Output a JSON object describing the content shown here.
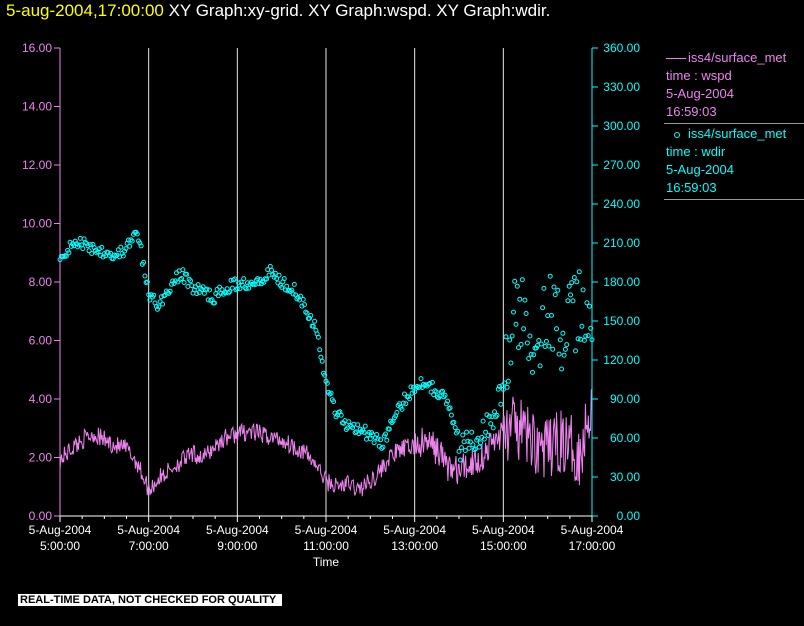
{
  "header": {
    "datetime": "5-aug-2004,17:00:00",
    "graphs": "XY Graph:xy-grid.  XY Graph:wspd.  XY Graph:wdir."
  },
  "legend": {
    "wspd": {
      "line1": "iss4/surface_met",
      "line2": "time : wspd",
      "line3": "5-Aug-2004",
      "line4": "16:59:03"
    },
    "wdir": {
      "line1": "iss4/surface_met",
      "line2": "time : wdir",
      "line3": "5-Aug-2004",
      "line4": "16:59:03"
    }
  },
  "footer": {
    "text": "REAL-TIME DATA, NOT CHECKED FOR QUALITY"
  },
  "colors": {
    "wspd": "#ee82ee",
    "wdir": "#00ffff",
    "grid": "#e8e8e8",
    "axis": "#ffffff"
  },
  "chart_data": {
    "type": "line",
    "xlabel": "Time",
    "x_range": [
      "2004-08-05 05:00",
      "2004-08-05 17:00"
    ],
    "x_ticks": [
      {
        "date": "5-Aug-2004",
        "time": "5:00:00",
        "hour": 5
      },
      {
        "date": "5-Aug-2004",
        "time": "7:00:00",
        "hour": 7
      },
      {
        "date": "5-Aug-2004",
        "time": "9:00:00",
        "hour": 9
      },
      {
        "date": "5-Aug-2004",
        "time": "11:00:00",
        "hour": 11
      },
      {
        "date": "5-Aug-2004",
        "time": "13:00:00",
        "hour": 13
      },
      {
        "date": "5-Aug-2004",
        "time": "15:00:00",
        "hour": 15
      },
      {
        "date": "5-Aug-2004",
        "time": "17:00:00",
        "hour": 17
      }
    ],
    "vertical_gridlines_hours": [
      7,
      9,
      11,
      13,
      15,
      17
    ],
    "y_left": {
      "range": [
        0,
        16
      ],
      "ticks": [
        "0.00",
        "2.00",
        "4.00",
        "6.00",
        "8.00",
        "10.00",
        "12.00",
        "14.00",
        "16.00"
      ]
    },
    "y_right": {
      "range": [
        0,
        360
      ],
      "ticks": [
        "0.00",
        "30.00",
        "60.00",
        "90.00",
        "120.00",
        "150.00",
        "180.00",
        "210.00",
        "240.00",
        "270.00",
        "300.00",
        "330.00",
        "360.00"
      ]
    },
    "series": [
      {
        "name": "iss4/surface_met time : wspd",
        "axis": "left",
        "style": "line",
        "hours": [
          5.0,
          5.25,
          5.5,
          5.75,
          6.0,
          6.25,
          6.5,
          6.75,
          7.0,
          7.25,
          7.5,
          7.75,
          8.0,
          8.25,
          8.5,
          8.75,
          9.0,
          9.25,
          9.5,
          9.75,
          10.0,
          10.25,
          10.5,
          10.75,
          11.0,
          11.25,
          11.5,
          11.75,
          12.0,
          12.25,
          12.5,
          12.75,
          13.0,
          13.25,
          13.5,
          13.75,
          14.0,
          14.25,
          14.5,
          14.75,
          15.0,
          15.25,
          15.5,
          15.75,
          16.0,
          16.25,
          16.5,
          16.75,
          17.0
        ],
        "values": [
          1.9,
          2.3,
          2.6,
          2.8,
          2.6,
          2.4,
          2.3,
          1.8,
          0.9,
          1.3,
          1.6,
          1.9,
          2.1,
          2.0,
          2.4,
          2.7,
          2.8,
          2.9,
          2.8,
          2.7,
          2.6,
          2.4,
          2.2,
          1.8,
          1.2,
          1.0,
          1.1,
          0.9,
          1.2,
          1.6,
          2.1,
          2.3,
          2.4,
          2.5,
          2.3,
          1.7,
          1.5,
          1.8,
          2.0,
          2.5,
          2.9,
          3.0,
          2.8,
          2.5,
          2.2,
          2.6,
          2.4,
          2.1,
          4.1
        ]
      },
      {
        "name": "iss4/surface_met time : wdir",
        "axis": "right",
        "style": "circles",
        "hours": [
          5.0,
          5.25,
          5.5,
          5.75,
          6.0,
          6.25,
          6.5,
          6.75,
          7.0,
          7.25,
          7.5,
          7.75,
          8.0,
          8.25,
          8.5,
          8.75,
          9.0,
          9.25,
          9.5,
          9.75,
          10.0,
          10.25,
          10.5,
          10.75,
          11.0,
          11.25,
          11.5,
          11.75,
          12.0,
          12.25,
          12.5,
          12.75,
          13.0,
          13.25,
          13.5,
          13.75,
          14.0,
          14.25,
          14.5,
          14.75,
          15.0,
          15.25,
          15.5,
          15.75,
          16.0,
          16.25,
          16.5,
          16.75,
          17.0
        ],
        "values": [
          198,
          208,
          210,
          206,
          204,
          200,
          206,
          218,
          170,
          162,
          178,
          186,
          176,
          172,
          168,
          176,
          178,
          180,
          182,
          188,
          180,
          176,
          164,
          146,
          104,
          78,
          70,
          68,
          62,
          55,
          72,
          88,
          100,
          104,
          96,
          88,
          52,
          58,
          64,
          74,
          100,
          152,
          150,
          138,
          160,
          142,
          146,
          160,
          136
        ]
      }
    ]
  }
}
